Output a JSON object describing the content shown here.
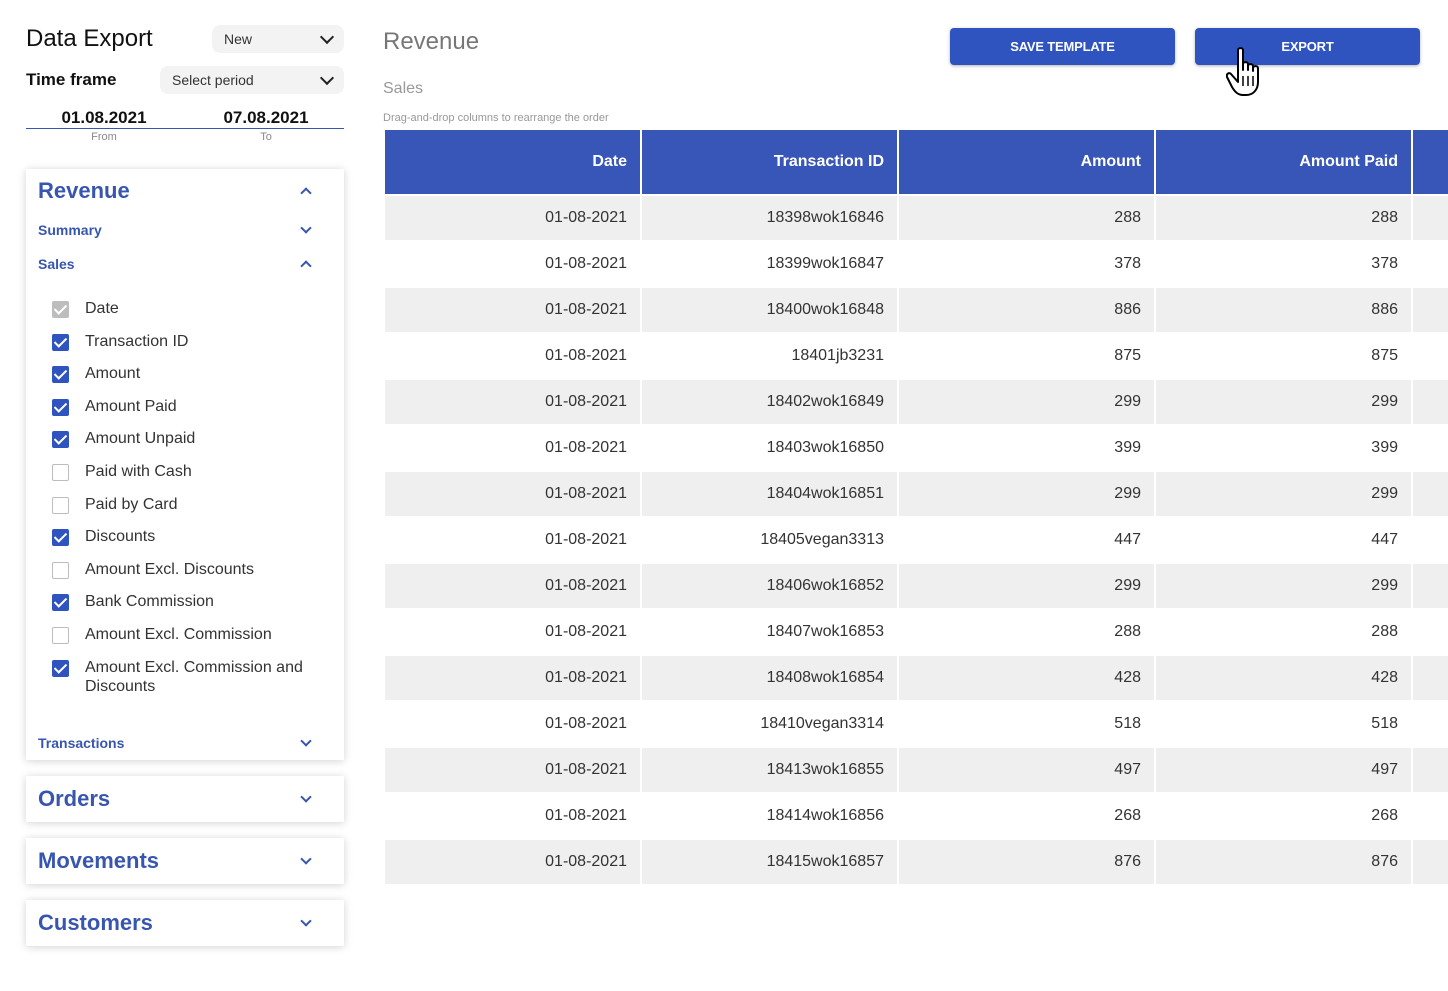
{
  "header": {
    "app_title": "Data Export",
    "template_select": "New",
    "timeframe_label": "Time frame",
    "period_select": "Select period"
  },
  "dates": {
    "from_value": "01.08.2021",
    "from_label": "From",
    "to_value": "07.08.2021",
    "to_label": "To"
  },
  "revenue_panel": {
    "title": "Revenue",
    "summary_label": "Summary",
    "sales_label": "Sales",
    "transactions_label": "Transactions",
    "columns": [
      {
        "label": "Date",
        "state": "disabled"
      },
      {
        "label": "Transaction ID",
        "state": "checked"
      },
      {
        "label": "Amount",
        "state": "checked"
      },
      {
        "label": "Amount Paid",
        "state": "checked"
      },
      {
        "label": "Amount Unpaid",
        "state": "checked"
      },
      {
        "label": "Paid with Cash",
        "state": "unchecked"
      },
      {
        "label": "Paid by Card",
        "state": "unchecked"
      },
      {
        "label": "Discounts",
        "state": "checked"
      },
      {
        "label": "Amount Excl. Discounts",
        "state": "unchecked"
      },
      {
        "label": "Bank Commission",
        "state": "checked"
      },
      {
        "label": "Amount Excl. Commission",
        "state": "unchecked"
      },
      {
        "label": "Amount Excl. Commission and Discounts",
        "state": "checked"
      }
    ]
  },
  "other_panels": {
    "orders": "Orders",
    "movements": "Movements",
    "customers": "Customers"
  },
  "main": {
    "title": "Revenue",
    "section": "Sales",
    "hint": "Drag-and-drop columns to rearrange the order",
    "save_template_label": "SAVE TEMPLATE",
    "export_label": "EXPORT"
  },
  "table": {
    "headers": [
      "Date",
      "Transaction ID",
      "Amount",
      "Amount Paid"
    ],
    "rows": [
      [
        "01-08-2021",
        "18398wok16846",
        "288",
        "288"
      ],
      [
        "01-08-2021",
        "18399wok16847",
        "378",
        "378"
      ],
      [
        "01-08-2021",
        "18400wok16848",
        "886",
        "886"
      ],
      [
        "01-08-2021",
        "18401jb3231",
        "875",
        "875"
      ],
      [
        "01-08-2021",
        "18402wok16849",
        "299",
        "299"
      ],
      [
        "01-08-2021",
        "18403wok16850",
        "399",
        "399"
      ],
      [
        "01-08-2021",
        "18404wok16851",
        "299",
        "299"
      ],
      [
        "01-08-2021",
        "18405vegan3313",
        "447",
        "447"
      ],
      [
        "01-08-2021",
        "18406wok16852",
        "299",
        "299"
      ],
      [
        "01-08-2021",
        "18407wok16853",
        "288",
        "288"
      ],
      [
        "01-08-2021",
        "18408wok16854",
        "428",
        "428"
      ],
      [
        "01-08-2021",
        "18410vegan3314",
        "518",
        "518"
      ],
      [
        "01-08-2021",
        "18413wok16855",
        "497",
        "497"
      ],
      [
        "01-08-2021",
        "18414wok16856",
        "268",
        "268"
      ],
      [
        "01-08-2021",
        "18415wok16857",
        "876",
        "876"
      ]
    ]
  },
  "colors": {
    "accent": "#2f54c0",
    "header_bg": "#3856b8",
    "row_alt": "#efefef"
  },
  "icons": {
    "cursor": "hand-pointer-icon"
  }
}
